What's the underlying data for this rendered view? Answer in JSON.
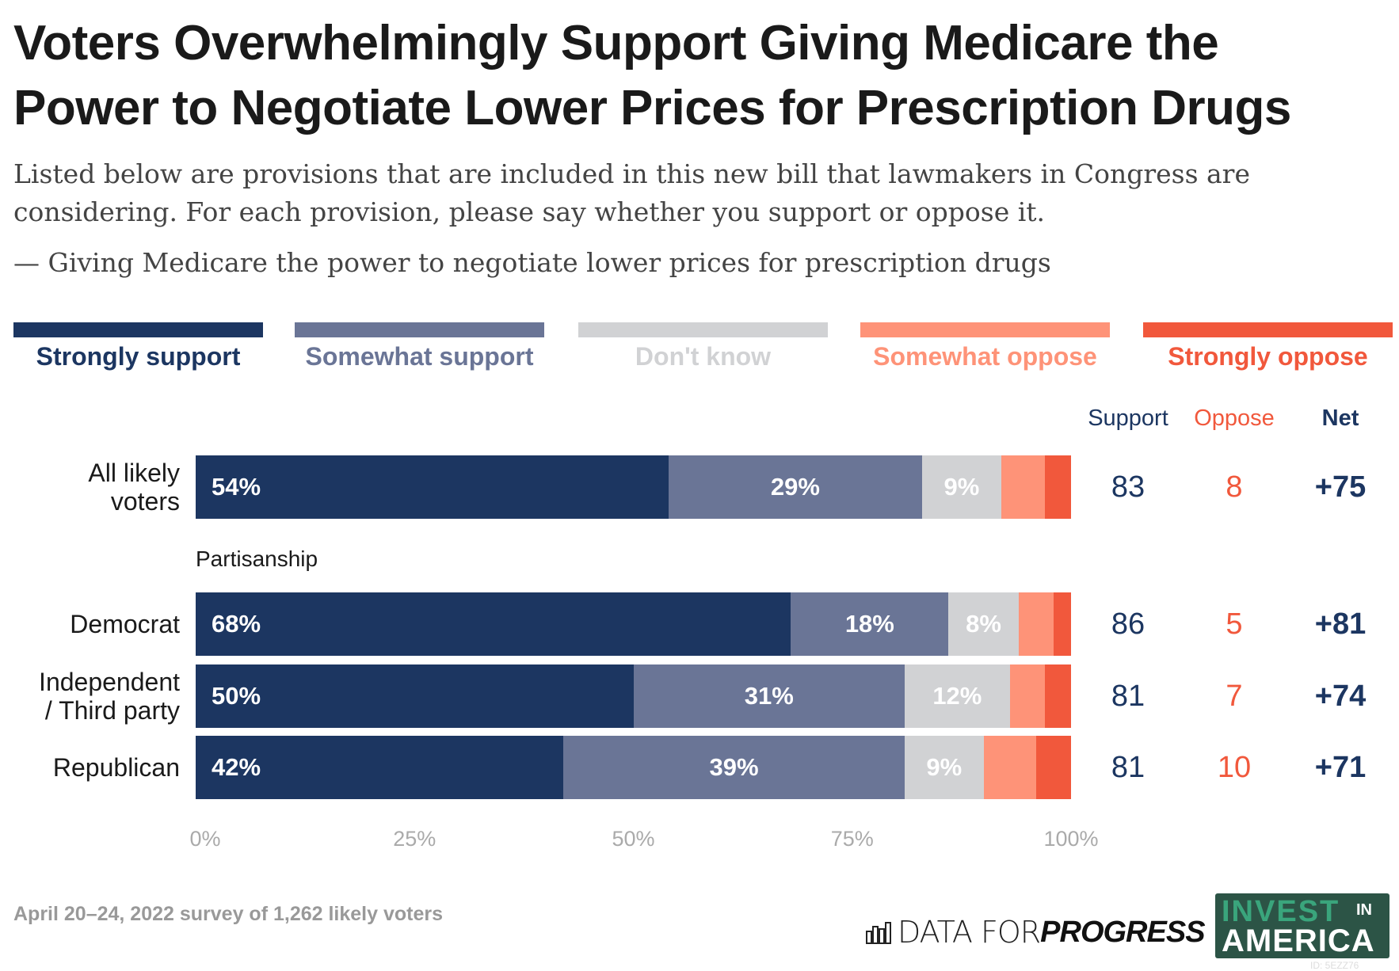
{
  "title_lines": [
    "Voters Overwhelmingly Support Giving Medicare the",
    "Power to Negotiate Lower Prices for Prescription Drugs"
  ],
  "subtitle_lines": [
    "Listed below are provisions that are included in this new bill that lawmakers in Congress are",
    "considering. For each provision, please say whether you support or oppose it."
  ],
  "question": "— Giving Medicare the power to negotiate lower prices for prescription drugs",
  "chart_data": {
    "type": "bar",
    "orientation": "horizontal-stacked-100",
    "categories": [
      "All likely voters",
      "Democrat",
      "Independent / Third party",
      "Republican"
    ],
    "category_labels": [
      [
        "All likely",
        "voters"
      ],
      [
        "Democrat"
      ],
      [
        "Independent",
        "/ Third party"
      ],
      [
        "Republican"
      ]
    ],
    "group_label": "Partisanship",
    "series": [
      {
        "name": "Strongly support",
        "color": "#1c3661",
        "values": [
          54,
          68,
          50,
          42
        ],
        "labels": [
          "54%",
          "68%",
          "50%",
          "42%"
        ]
      },
      {
        "name": "Somewhat support",
        "color": "#6a7596",
        "values": [
          29,
          18,
          31,
          39
        ],
        "labels": [
          "29%",
          "18%",
          "31%",
          "39%"
        ]
      },
      {
        "name": "Don't know",
        "color": "#d1d2d4",
        "values": [
          9,
          8,
          12,
          9
        ],
        "labels": [
          "9%",
          "8%",
          "12%",
          "9%"
        ]
      },
      {
        "name": "Somewhat oppose",
        "color": "#fe9378",
        "values": [
          5,
          4,
          4,
          6
        ],
        "labels": [
          "",
          "",
          "",
          ""
        ]
      },
      {
        "name": "Strongly oppose",
        "color": "#f1583c",
        "values": [
          3,
          2,
          3,
          4
        ],
        "labels": [
          "",
          "",
          "",
          ""
        ]
      }
    ],
    "xlim": [
      0,
      100
    ],
    "x_ticks": [
      "0%",
      "25%",
      "50%",
      "75%",
      "100%"
    ],
    "legend_placement": "top",
    "summary_headers": {
      "support": "Support",
      "oppose": "Oppose",
      "net": "Net"
    },
    "summary": [
      {
        "support": "83",
        "oppose": "8",
        "net": "+75"
      },
      {
        "support": "86",
        "oppose": "5",
        "net": "+81"
      },
      {
        "support": "81",
        "oppose": "7",
        "net": "+74"
      },
      {
        "support": "81",
        "oppose": "10",
        "net": "+71"
      }
    ]
  },
  "footer": "April 20–24, 2022 survey of 1,262 likely voters",
  "logos": {
    "dfp_light": "DATA FOR ",
    "dfp_bold": "PROGRESS",
    "invest": "INVEST",
    "in": "IN",
    "america": "AMERICA",
    "id": "ID: 5EZZ76"
  },
  "colors": {
    "navy": "#1c3661",
    "red": "#f1583c"
  }
}
